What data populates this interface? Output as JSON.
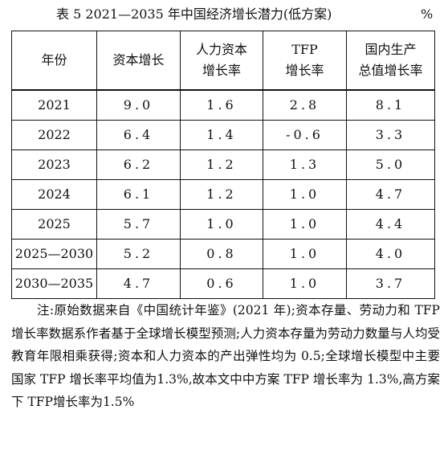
{
  "caption": {
    "title": "表 5   2021—2035 年中国经济增长潜力(低方案)",
    "unit": "%"
  },
  "table": {
    "headers": [
      [
        "年份"
      ],
      [
        "资本增长"
      ],
      [
        "人力资本",
        "增长率"
      ],
      [
        "TFP",
        "增长率"
      ],
      [
        "国内生产",
        "总值增长率"
      ]
    ],
    "rows": [
      [
        "2021",
        "9.0",
        "1.6",
        "2.8",
        "8.1"
      ],
      [
        "2022",
        "6.4",
        "1.4",
        "-0.6",
        "3.3"
      ],
      [
        "2023",
        "6.2",
        "1.2",
        "1.3",
        "5.0"
      ],
      [
        "2024",
        "6.1",
        "1.2",
        "1.0",
        "4.7"
      ],
      [
        "2025",
        "5.7",
        "1.0",
        "1.0",
        "4.4"
      ],
      [
        "2025—2030",
        "5.2",
        "0.8",
        "1.0",
        "4.0"
      ],
      [
        "2030—2035",
        "4.7",
        "0.6",
        "1.0",
        "3.7"
      ]
    ]
  },
  "note": "注:原始数据来自《中国统计年鉴》(2021 年);资本存量、劳动力和 TFP 增长率数据系作者基于全球增长模型预测;人力资本存量为劳动力数量与人均受教育年限相乘获得;资本和人力资本的产出弹性均为 0.5;全球增长模型中主要国家 TFP 增长率平均值为1.3%,故本文中中方案 TFP 增长率为 1.3%,高方案下 TFP增长率为1.5%"
}
